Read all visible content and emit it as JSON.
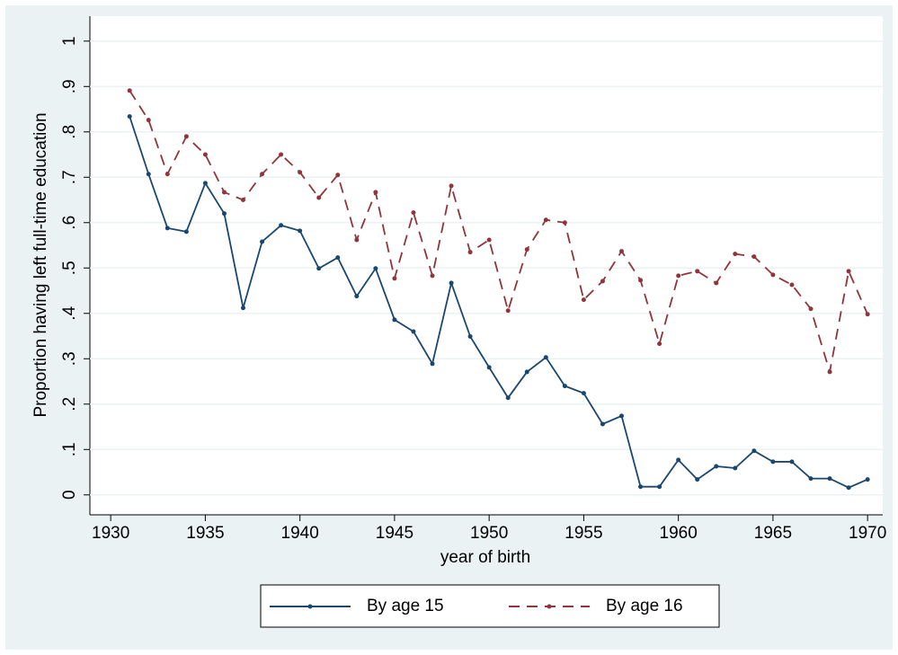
{
  "chart_data": {
    "type": "line",
    "x_label": "year of birth",
    "y_label": "Proportion having left full-time education",
    "x": [
      1931,
      1932,
      1933,
      1934,
      1935,
      1936,
      1937,
      1938,
      1939,
      1940,
      1941,
      1942,
      1943,
      1944,
      1945,
      1946,
      1947,
      1948,
      1949,
      1950,
      1951,
      1952,
      1953,
      1954,
      1955,
      1956,
      1957,
      1958,
      1959,
      1960,
      1961,
      1962,
      1963,
      1964,
      1965,
      1966,
      1967,
      1968,
      1969,
      1970
    ],
    "series": [
      {
        "name": "By age 15",
        "color": "#1a476f",
        "dash": false,
        "values": [
          0.834,
          0.707,
          0.588,
          0.58,
          0.687,
          0.62,
          0.412,
          0.558,
          0.594,
          0.582,
          0.499,
          0.523,
          0.438,
          0.499,
          0.386,
          0.36,
          0.289,
          0.467,
          0.349,
          0.281,
          0.214,
          0.271,
          0.303,
          0.24,
          0.224,
          0.156,
          0.174,
          0.018,
          0.018,
          0.077,
          0.034,
          0.063,
          0.059,
          0.097,
          0.073,
          0.073,
          0.036,
          0.036,
          0.016,
          0.034
        ]
      },
      {
        "name": "By age 16",
        "color": "#90353b",
        "dash": true,
        "values": [
          0.891,
          0.826,
          0.707,
          0.79,
          0.75,
          0.667,
          0.65,
          0.707,
          0.75,
          0.711,
          0.655,
          0.705,
          0.562,
          0.667,
          0.477,
          0.622,
          0.483,
          0.681,
          0.535,
          0.562,
          0.406,
          0.541,
          0.606,
          0.6,
          0.43,
          0.471,
          0.537,
          0.473,
          0.333,
          0.483,
          0.493,
          0.467,
          0.531,
          0.525,
          0.485,
          0.463,
          0.41,
          0.271,
          0.493,
          0.398
        ]
      }
    ],
    "xlim": [
      1928.9,
      1970.8
    ],
    "xticks": [
      1930,
      1935,
      1940,
      1945,
      1950,
      1955,
      1960,
      1965,
      1970
    ],
    "ylim": [
      -0.044,
      1.055
    ],
    "yticks": [
      0,
      {
        "value": 0.1,
        "label": ".1"
      },
      {
        "value": 0.2,
        "label": ".2"
      },
      {
        "value": 0.3,
        "label": ".3"
      },
      {
        "value": 0.4,
        "label": ".4"
      },
      {
        "value": 0.5,
        "label": ".5"
      },
      {
        "value": 0.6,
        "label": ".6"
      },
      {
        "value": 0.7,
        "label": ".7"
      },
      {
        "value": 0.8,
        "label": ".8"
      },
      {
        "value": 0.9,
        "label": ".9"
      },
      1
    ],
    "grid": true,
    "legend": "bottom"
  }
}
